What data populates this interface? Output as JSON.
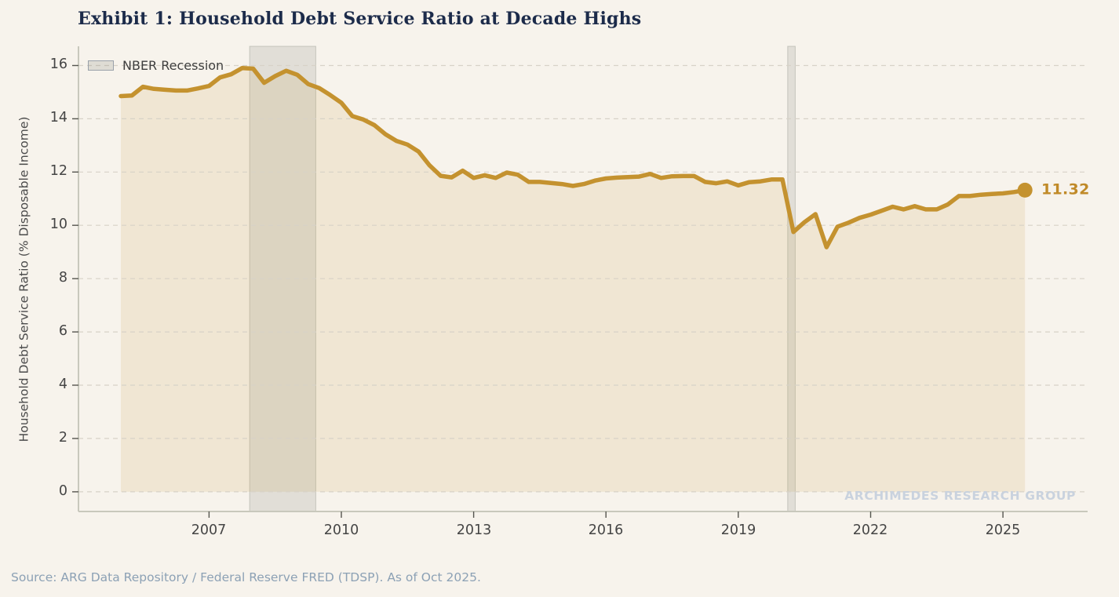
{
  "title": "Exhibit 1: Household Debt Service Ratio at Decade Highs",
  "source_note": "Source: ARG Data Repository / Federal Reserve FRED (TDSP). As of Oct 2025.",
  "watermark": "ARCHIMEDES RESEARCH GROUP",
  "legend": {
    "recession_label": "NBER Recession"
  },
  "chart_data": {
    "type": "area",
    "title": "Exhibit 1: Household Debt Service Ratio at Decade Highs",
    "xlabel": "",
    "ylabel": "Household Debt Service Ratio (% Disposable Income)",
    "frequency": "quarterly",
    "x_start_year": 2005.0,
    "x_step_years": 0.25,
    "values": [
      14.85,
      14.87,
      15.2,
      15.12,
      15.09,
      15.06,
      15.06,
      15.14,
      15.23,
      15.55,
      15.67,
      15.9,
      15.88,
      15.35,
      15.6,
      15.8,
      15.65,
      15.3,
      15.15,
      14.89,
      14.6,
      14.1,
      13.97,
      13.76,
      13.42,
      13.17,
      13.03,
      12.77,
      12.25,
      11.86,
      11.8,
      12.05,
      11.78,
      11.88,
      11.78,
      11.98,
      11.9,
      11.63,
      11.63,
      11.59,
      11.55,
      11.48,
      11.55,
      11.68,
      11.76,
      11.79,
      11.81,
      11.83,
      11.93,
      11.78,
      11.84,
      11.85,
      11.85,
      11.63,
      11.58,
      11.65,
      11.5,
      11.62,
      11.65,
      11.72,
      11.72,
      9.75,
      10.12,
      10.42,
      9.18,
      9.95,
      10.1,
      10.28,
      10.4,
      10.55,
      10.7,
      10.6,
      10.72,
      10.6,
      10.6,
      10.78,
      11.1,
      11.1,
      11.15,
      11.18,
      11.2,
      11.25,
      11.32
    ],
    "end_point": {
      "x": 2025.75,
      "value": 11.32,
      "label": "11.32"
    },
    "xlim": [
      2004.04,
      2026.92
    ],
    "ylim": [
      -0.74,
      16.72
    ],
    "xticks": [
      2007,
      2010,
      2013,
      2016,
      2019,
      2022,
      2025
    ],
    "yticks": [
      0,
      2,
      4,
      6,
      8,
      10,
      12,
      14,
      16
    ],
    "grid": "horizontal dashed",
    "legend_position": "upper left",
    "recession_bands": [
      {
        "start": 2007.92,
        "end": 2009.42
      },
      {
        "start": 2020.12,
        "end": 2020.29
      }
    ],
    "colors": {
      "line": "#C4922F",
      "area_fill": "rgba(196,146,47,0.13)",
      "recession_band": "rgba(110,115,105,0.16)",
      "recession_band_edge": "rgba(110,115,105,0.30)",
      "background": "#F7F3EC",
      "grid": "#D7D2C7",
      "spine": "#C8C8BC",
      "tick": "#55554F",
      "tick_label": "#454545",
      "title": "#1C2B4A",
      "end_label": "#C08A28",
      "watermark": "#C9D2DE",
      "source": "#8CA1B5"
    }
  }
}
